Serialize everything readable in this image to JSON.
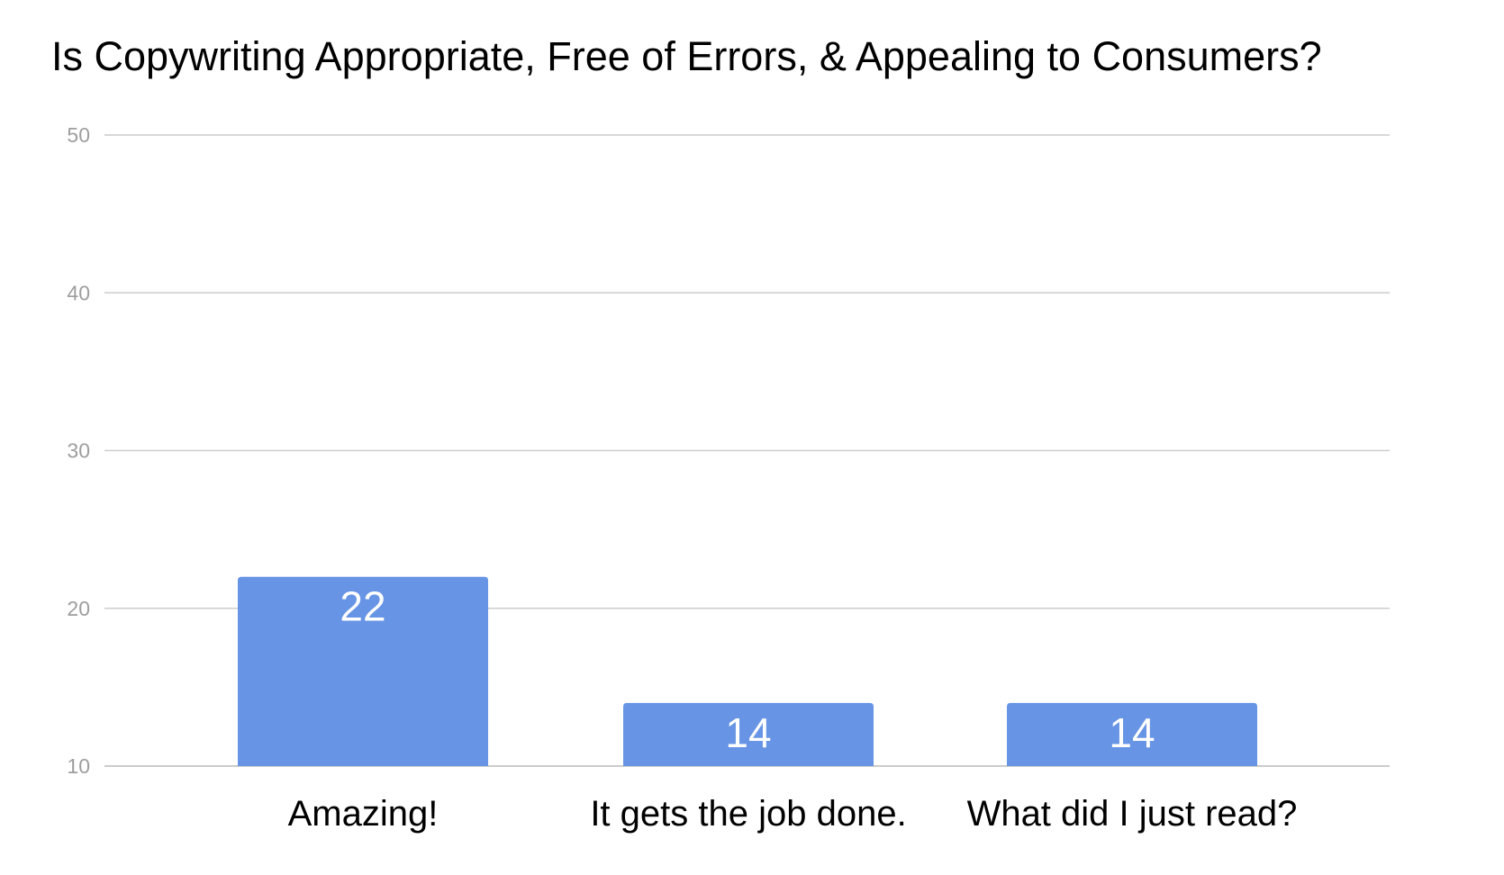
{
  "chart_data": {
    "type": "bar",
    "title": "Is Copywriting Appropriate, Free of Errors, & Appealing to Consumers?",
    "xlabel": "",
    "ylabel": "",
    "categories": [
      "Amazing!",
      "It gets the job done.",
      "What did I just read?"
    ],
    "values": [
      22,
      14,
      14
    ],
    "data_labels": [
      "22",
      "14",
      "14"
    ],
    "ylim": [
      10,
      50
    ],
    "yticks": [
      10,
      20,
      30,
      40,
      50
    ],
    "ytick_labels": [
      "10",
      "20",
      "30",
      "40",
      "50"
    ],
    "grid": true,
    "legend": "none",
    "colors": {
      "bar": "#6794e5",
      "grid": "#cccccc",
      "tick_text": "#9e9e9e",
      "title_text": "#000000",
      "data_label_text": "#ffffff"
    }
  }
}
